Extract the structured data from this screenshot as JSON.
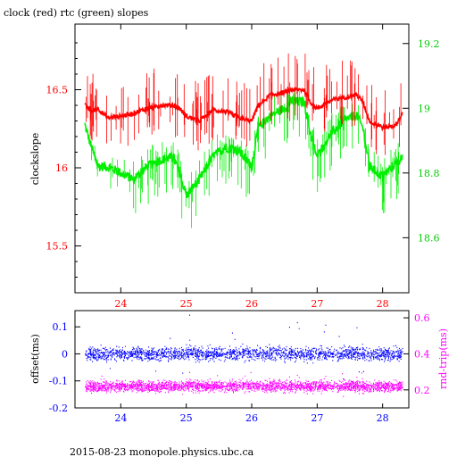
{
  "title": "clock (red) rtc (green) slopes",
  "footer": "2015-08-23  monopole.physics.ubc.ca",
  "colors": {
    "clock": "#ff0000",
    "rtc": "#00ee00",
    "offset": "#0000ff",
    "rndtrip": "#ff00ff",
    "axis": "#000000"
  },
  "chart_data": [
    {
      "type": "line",
      "title": "clock (red) rtc (green) slopes",
      "xlabel": "",
      "ylabel": "clockslope",
      "xlim": [
        23.3,
        28.4
      ],
      "x_ticks": [
        24,
        25,
        26,
        27,
        28
      ],
      "ylim": [
        15.2,
        16.92
      ],
      "y_ticks": [
        15.5,
        16,
        16.5
      ],
      "y2lim": [
        18.43,
        19.26
      ],
      "y2_ticks": [
        18.6,
        18.8,
        19,
        19.2
      ],
      "grid": false,
      "series": [
        {
          "name": "clock",
          "axis": "left",
          "x": [
            23.45,
            23.55,
            23.65,
            23.8,
            24.0,
            24.2,
            24.4,
            24.6,
            24.8,
            24.9,
            25.0,
            25.2,
            25.4,
            25.6,
            25.8,
            26.0,
            26.1,
            26.3,
            26.5,
            26.6,
            26.8,
            26.9,
            27.0,
            27.2,
            27.4,
            27.6,
            27.7,
            27.8,
            28.0,
            28.2,
            28.3
          ],
          "values": [
            16.4,
            16.36,
            16.38,
            16.32,
            16.33,
            16.35,
            16.38,
            16.4,
            16.4,
            16.38,
            16.33,
            16.3,
            16.37,
            16.36,
            16.32,
            16.3,
            16.4,
            16.47,
            16.48,
            16.5,
            16.5,
            16.42,
            16.38,
            16.43,
            16.45,
            16.47,
            16.42,
            16.3,
            16.26,
            16.27,
            16.35
          ]
        },
        {
          "name": "rtc",
          "axis": "right",
          "x": [
            23.45,
            23.55,
            23.65,
            23.8,
            24.0,
            24.2,
            24.4,
            24.6,
            24.8,
            24.9,
            25.0,
            25.2,
            25.4,
            25.6,
            25.8,
            26.0,
            26.1,
            26.3,
            26.5,
            26.6,
            26.8,
            26.9,
            27.0,
            27.2,
            27.4,
            27.6,
            27.7,
            27.8,
            28.0,
            28.2,
            28.3
          ],
          "values": [
            18.95,
            18.88,
            18.82,
            18.82,
            18.8,
            18.78,
            18.82,
            18.84,
            18.85,
            18.8,
            18.73,
            18.78,
            18.85,
            18.88,
            18.87,
            18.82,
            18.94,
            18.98,
            19.0,
            19.02,
            19.02,
            18.92,
            18.85,
            18.92,
            18.96,
            18.98,
            18.94,
            18.82,
            18.79,
            18.83,
            18.85
          ]
        }
      ]
    },
    {
      "type": "scatter",
      "xlabel": "",
      "ylabel": "offset(ms)",
      "y2label": "rnd-trip(ms)",
      "xlim": [
        23.3,
        28.4
      ],
      "x_ticks": [
        24,
        25,
        26,
        27,
        28
      ],
      "ylim": [
        -0.2,
        0.16
      ],
      "y_ticks": [
        -0.2,
        -0.1,
        0,
        0.1
      ],
      "y2lim": [
        0.1,
        0.64
      ],
      "y2_ticks": [
        0.2,
        0.4,
        0.6
      ],
      "grid": false,
      "series": [
        {
          "name": "offset",
          "axis": "left",
          "center": 0.0,
          "spread": 0.025,
          "range": [
            -0.1,
            0.15
          ]
        },
        {
          "name": "rnd-trip",
          "axis": "right",
          "center": 0.22,
          "spread": 0.03,
          "range": [
            0.16,
            0.3
          ]
        }
      ]
    }
  ]
}
